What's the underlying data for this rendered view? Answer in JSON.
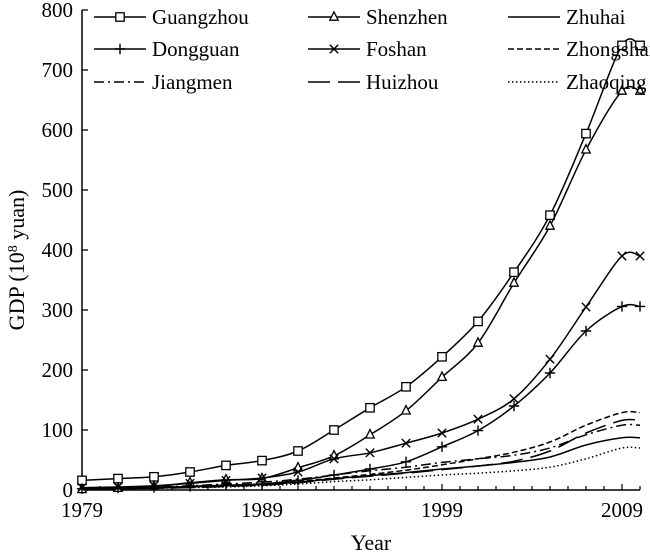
{
  "chart_data": {
    "type": "line",
    "xlabel": "Year",
    "ylabel": "GDP (10",
    "ylabel_sup": "8",
    "ylabel_suffix": " yuan)",
    "xlim": [
      1979,
      2010
    ],
    "ylim": [
      0,
      800
    ],
    "xticks": [
      1979,
      1989,
      1999,
      2009
    ],
    "yticks": [
      0,
      100,
      200,
      300,
      400,
      500,
      600,
      700,
      800
    ],
    "grid": false,
    "legend_position": "top",
    "x": [
      1979,
      1981,
      1983,
      1985,
      1987,
      1989,
      1991,
      1993,
      1995,
      1997,
      1999,
      2001,
      2003,
      2005,
      2007,
      2009,
      2010
    ],
    "series": [
      {
        "name": "Guangzhou",
        "marker": "square",
        "dash": "",
        "values": [
          16,
          19,
          22,
          30,
          41,
          49,
          65,
          100,
          137,
          172,
          222,
          281,
          363,
          458,
          594,
          741,
          741
        ]
      },
      {
        "name": "Shenzhen",
        "marker": "triangle",
        "dash": "",
        "values": [
          1,
          3,
          6,
          12,
          17,
          19,
          37,
          57,
          92,
          132,
          188,
          245,
          345,
          440,
          567,
          665,
          665
        ]
      },
      {
        "name": "Zhuhai",
        "marker": "none",
        "dash": "",
        "values": [
          1,
          2,
          3,
          5,
          7,
          9,
          13,
          19,
          24,
          29,
          35,
          40,
          46,
          55,
          75,
          87,
          87
        ]
      },
      {
        "name": "Dongguan",
        "marker": "plus",
        "dash": "",
        "values": [
          2,
          3,
          4,
          6,
          8,
          10,
          16,
          25,
          35,
          47,
          72,
          99,
          140,
          195,
          265,
          306,
          306
        ]
      },
      {
        "name": "Foshan",
        "marker": "cross",
        "dash": "",
        "values": [
          4,
          5,
          7,
          11,
          16,
          20,
          30,
          52,
          62,
          78,
          95,
          118,
          152,
          218,
          305,
          390,
          390
        ]
      },
      {
        "name": "Zhongshan",
        "marker": "none",
        "dash": "6,3",
        "values": [
          2,
          3,
          4,
          6,
          8,
          10,
          14,
          20,
          26,
          33,
          42,
          52,
          63,
          80,
          108,
          129,
          129
        ]
      },
      {
        "name": "Jiangmen",
        "marker": "none",
        "dash": "10,4,2,4",
        "values": [
          3,
          4,
          5,
          7,
          10,
          13,
          18,
          25,
          32,
          38,
          46,
          52,
          58,
          70,
          92,
          108,
          108
        ]
      },
      {
        "name": "Huizhou",
        "marker": "none",
        "dash": "22,8",
        "values": [
          1,
          2,
          3,
          4,
          6,
          8,
          12,
          18,
          23,
          28,
          34,
          40,
          48,
          65,
          95,
          116,
          116
        ]
      },
      {
        "name": "Zhaoqing",
        "marker": "none",
        "dash": "1.5,2.5",
        "values": [
          1,
          2,
          3,
          4,
          5,
          7,
          10,
          14,
          17,
          21,
          25,
          28,
          32,
          38,
          52,
          70,
          70
        ]
      }
    ]
  }
}
